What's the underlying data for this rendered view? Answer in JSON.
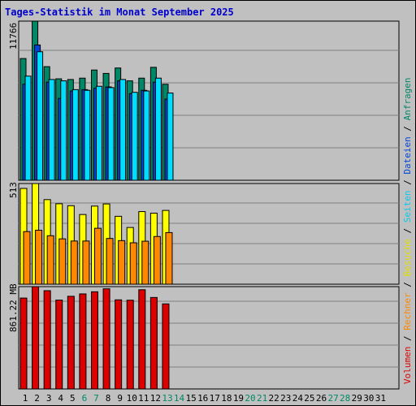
{
  "chart_data": {
    "type": "bar",
    "title": "Tages-Statistik im Monat September 2025",
    "days": [
      "1",
      "2",
      "3",
      "4",
      "5",
      "6",
      "7",
      "8",
      "9",
      "10",
      "11",
      "12",
      "13",
      "14",
      "15",
      "16",
      "17",
      "18",
      "19",
      "20",
      "21",
      "22",
      "23",
      "24",
      "25",
      "26",
      "27",
      "28",
      "29",
      "30",
      "31"
    ],
    "weekend_days": [
      "6",
      "7",
      "13",
      "14",
      "20",
      "21",
      "27",
      "28"
    ],
    "legend": [
      {
        "name": "Volumen",
        "color": "#dd0000"
      },
      {
        "name": "Rechner",
        "color": "#ff8800"
      },
      {
        "name": "Besuche",
        "color": "#ffff00"
      },
      {
        "name": "Seiten",
        "color": "#00ddff"
      },
      {
        "name": "Dateien",
        "color": "#0044dd"
      },
      {
        "name": "Anfragen",
        "color": "#008866"
      }
    ],
    "panels": [
      {
        "scale_label": "11766",
        "ylim": [
          0,
          11766
        ],
        "series": [
          {
            "name": "Anfragen",
            "color": "#008866",
            "values": [
              9000,
              11766,
              8400,
              7500,
              7450,
              7550,
              8150,
              7900,
              8300,
              7350,
              7550,
              8350,
              7100
            ]
          },
          {
            "name": "Dateien",
            "color": "#0044dd",
            "values": [
              7100,
              10000,
              7250,
              6050,
              6600,
              6700,
              6800,
              6900,
              7350,
              6400,
              6650,
              7250,
              6000
            ]
          },
          {
            "name": "Seiten",
            "color": "#00ddff",
            "values": [
              7700,
              9500,
              7450,
              7350,
              6700,
              6650,
              6950,
              6850,
              7450,
              6500,
              6600,
              7550,
              6450
            ]
          }
        ]
      },
      {
        "scale_label": "513",
        "ylim": [
          0,
          513
        ],
        "series": [
          {
            "name": "Besuche",
            "color": "#ffff00",
            "values": [
              488,
              513,
              431,
              410,
              400,
              355,
              398,
              409,
              346,
              289,
              370,
              362,
              376
            ]
          },
          {
            "name": "Rechner",
            "color": "#ff8800",
            "values": [
              268,
              275,
              247,
              231,
              220,
              220,
              285,
              233,
              222,
              211,
              219,
              243,
              263
            ]
          }
        ]
      },
      {
        "scale_label": "861.22 MB",
        "ylim": [
          0,
          861.22
        ],
        "series": [
          {
            "name": "Volumen",
            "color": "#dd0000",
            "values": [
              765,
              861.22,
              827,
              748,
              780,
              800,
              818,
              843,
              750,
              747,
              835,
              770,
              716
            ]
          }
        ]
      }
    ]
  }
}
